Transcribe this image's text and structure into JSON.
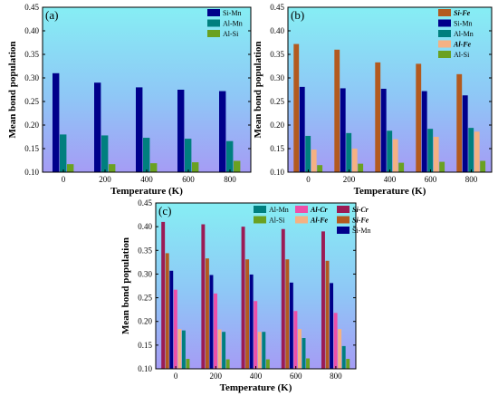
{
  "chart_data": [
    {
      "id": "a",
      "type": "bar",
      "panel_label": "(a)",
      "xlabel": "Temperature (K)",
      "ylabel": "Mean bond population",
      "ylim": [
        0.1,
        0.45
      ],
      "yticks": [
        "0.10",
        "0.15",
        "0.20",
        "0.25",
        "0.30",
        "0.35",
        "0.40",
        "0.45"
      ],
      "categories": [
        "0",
        "200",
        "400",
        "600",
        "800"
      ],
      "legend_position": "top-right",
      "series": [
        {
          "name": "Si-Mn",
          "color": "#00008b",
          "emphasis": false,
          "values": [
            0.31,
            0.29,
            0.28,
            0.275,
            0.272
          ]
        },
        {
          "name": "Al-Mn",
          "color": "#007f7f",
          "emphasis": false,
          "values": [
            0.18,
            0.178,
            0.173,
            0.171,
            0.166
          ]
        },
        {
          "name": "Al-Si",
          "color": "#6aa121",
          "emphasis": false,
          "values": [
            0.117,
            0.117,
            0.119,
            0.121,
            0.124
          ]
        }
      ]
    },
    {
      "id": "b",
      "type": "bar",
      "panel_label": "(b)",
      "xlabel": "Temperature (K)",
      "ylabel": "Mean bond population",
      "ylim": [
        0.1,
        0.45
      ],
      "yticks": [
        "0.10",
        "0.15",
        "0.20",
        "0.25",
        "0.30",
        "0.35",
        "0.40",
        "0.45"
      ],
      "categories": [
        "0",
        "200",
        "400",
        "600",
        "800"
      ],
      "legend_position": "top-right",
      "series": [
        {
          "name": "Si-Fe",
          "color": "#b35a1f",
          "emphasis": true,
          "values": [
            0.372,
            0.36,
            0.333,
            0.33,
            0.308
          ]
        },
        {
          "name": "Si-Mn",
          "color": "#00008b",
          "emphasis": false,
          "values": [
            0.281,
            0.278,
            0.277,
            0.272,
            0.263
          ]
        },
        {
          "name": "Al-Mn",
          "color": "#007f7f",
          "emphasis": false,
          "values": [
            0.177,
            0.183,
            0.188,
            0.192,
            0.194
          ]
        },
        {
          "name": "Al-Fe",
          "color": "#f4b183",
          "emphasis": true,
          "values": [
            0.148,
            0.15,
            0.17,
            0.175,
            0.186
          ]
        },
        {
          "name": "Al-Si",
          "color": "#6aa121",
          "emphasis": false,
          "values": [
            0.115,
            0.118,
            0.12,
            0.122,
            0.124
          ]
        }
      ]
    },
    {
      "id": "c",
      "type": "bar",
      "panel_label": "(c)",
      "xlabel": "Temperature (K)",
      "ylabel": "Mean bond population",
      "ylim": [
        0.1,
        0.45
      ],
      "yticks": [
        "0.10",
        "0.15",
        "0.20",
        "0.25",
        "0.30",
        "0.35",
        "0.40",
        "0.45"
      ],
      "categories": [
        "0",
        "200",
        "400",
        "600",
        "800"
      ],
      "legend_position": "top-right",
      "series": [
        {
          "name": "Si-Cr",
          "color": "#9b1b55",
          "emphasis": true,
          "values": [
            0.41,
            0.405,
            0.4,
            0.395,
            0.39
          ]
        },
        {
          "name": "Si-Fe",
          "color": "#b35a1f",
          "emphasis": true,
          "values": [
            0.344,
            0.333,
            0.331,
            0.331,
            0.328
          ]
        },
        {
          "name": "Si-Mn",
          "color": "#00008b",
          "emphasis": false,
          "values": [
            0.307,
            0.298,
            0.299,
            0.282,
            0.281
          ]
        },
        {
          "name": "Al-Cr",
          "color": "#ee4fa8",
          "emphasis": true,
          "values": [
            0.267,
            0.259,
            0.243,
            0.222,
            0.218
          ]
        },
        {
          "name": "Al-Fe",
          "color": "#f4b183",
          "emphasis": true,
          "values": [
            0.184,
            0.183,
            0.178,
            0.184,
            0.184
          ]
        },
        {
          "name": "Al-Mn",
          "color": "#007f7f",
          "emphasis": false,
          "values": [
            0.181,
            0.178,
            0.178,
            0.165,
            0.148
          ]
        },
        {
          "name": "Al-Si",
          "color": "#6aa121",
          "emphasis": false,
          "values": [
            0.121,
            0.12,
            0.12,
            0.122,
            0.121
          ]
        }
      ],
      "legend_columns": [
        [
          "Al-Mn",
          "Al-Si"
        ],
        [
          "Al-Cr",
          "Al-Fe"
        ],
        [
          "Si-Cr",
          "Si-Fe",
          "Si-Mn"
        ]
      ]
    }
  ]
}
